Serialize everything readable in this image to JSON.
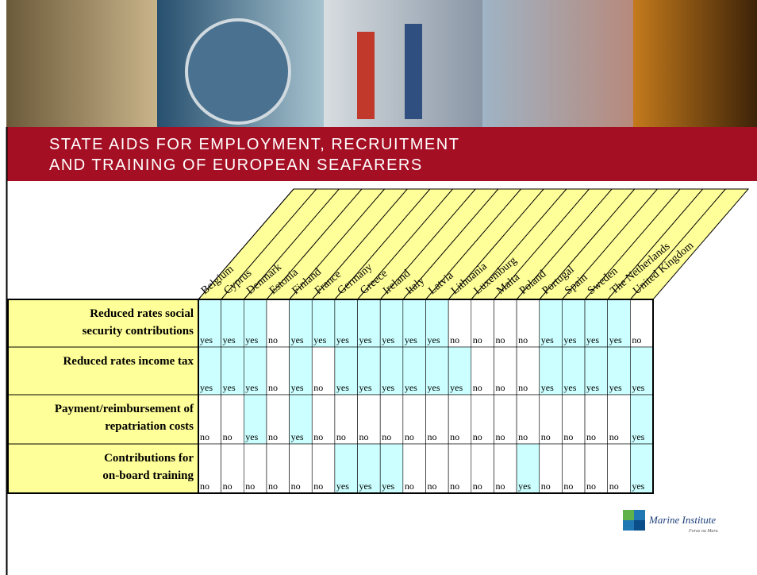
{
  "title": "STATE AIDS FOR EMPLOYMENT, RECRUITMENT AND TRAINING OF EUROPEAN SEAFARERS",
  "table": {
    "columns": [
      "Belgium",
      "Cyprus",
      "Denmark",
      "Estonia",
      "Finland",
      "France",
      "Germany",
      "Greece",
      "Ireland",
      "Italy",
      "Latvia",
      "Lithuania",
      "Luxemburg",
      "Malta",
      "Poland",
      "Portugal",
      "Spain",
      "Sweden",
      "The Netherlands",
      "United Kingdom"
    ],
    "rows": [
      {
        "label": "Reduced rates social security contributions",
        "cells": [
          "yes",
          "yes",
          "yes",
          "no",
          "yes",
          "yes",
          "yes",
          "yes",
          "yes",
          "yes",
          "yes",
          "no",
          "no",
          "no",
          "no",
          "yes",
          "yes",
          "yes",
          "yes",
          "no"
        ]
      },
      {
        "label": "Reduced rates income tax",
        "cells": [
          "yes",
          "yes",
          "yes",
          "no",
          "yes",
          "no",
          "yes",
          "yes",
          "yes",
          "yes",
          "yes",
          "yes",
          "no",
          "no",
          "no",
          "yes",
          "yes",
          "yes",
          "yes",
          "yes"
        ]
      },
      {
        "label": "Payment/reimbursement of repatriation costs",
        "cells": [
          "no",
          "no",
          "yes",
          "no",
          "yes",
          "no",
          "no",
          "no",
          "no",
          "no",
          "no",
          "no",
          "no",
          "no",
          "no",
          "no",
          "no",
          "no",
          "no",
          "yes"
        ]
      },
      {
        "label": "Contributions for on-board training",
        "cells": [
          "no",
          "no",
          "no",
          "no",
          "no",
          "no",
          "yes",
          "yes",
          "yes",
          "no",
          "no",
          "no",
          "no",
          "no",
          "yes",
          "no",
          "no",
          "no",
          "no",
          "yes"
        ]
      }
    ]
  },
  "logo": {
    "name": "Marine Institute",
    "tagline": "Foras na Mara"
  }
}
